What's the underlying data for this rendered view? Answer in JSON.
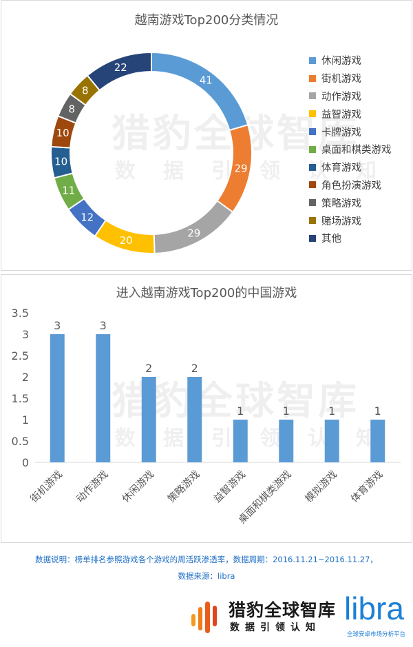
{
  "chart_data": [
    {
      "type": "pie",
      "variant": "donut",
      "title": "越南游戏Top200分类情况",
      "categories": [
        "休闲游戏",
        "街机游戏",
        "动作游戏",
        "益智游戏",
        "卡牌游戏",
        "桌面和棋类游戏",
        "体育游戏",
        "角色扮演游戏",
        "策略游戏",
        "赌场游戏",
        "其他"
      ],
      "values": [
        41,
        29,
        29,
        20,
        12,
        11,
        10,
        10,
        8,
        8,
        22
      ],
      "colors": [
        "#5b9bd5",
        "#ed7d31",
        "#a5a5a5",
        "#ffc000",
        "#4472c4",
        "#70ad47",
        "#255e91",
        "#9e480e",
        "#636363",
        "#997300",
        "#264478"
      ],
      "legend_position": "right"
    },
    {
      "type": "bar",
      "title": "进入越南游戏Top200的中国游戏",
      "categories": [
        "街机游戏",
        "动作游戏",
        "休闲游戏",
        "策略游戏",
        "益智游戏",
        "桌面和棋类游戏",
        "模拟游戏",
        "体育游戏"
      ],
      "values": [
        3,
        3,
        2,
        2,
        1,
        1,
        1,
        1
      ],
      "ylim": [
        0,
        3.5
      ],
      "yticks": [
        "0",
        "0.5",
        "1",
        "1.5",
        "2",
        "2.5",
        "3",
        "3.5"
      ],
      "bar_color": "#5b9bd5",
      "grid": false
    }
  ],
  "note": {
    "line1": "数据说明：榜单排名参照游戏各个游戏的周活跃渗透率，数据周期：2016.11.21~2016.11.27，",
    "line2": "数据来源：libra"
  },
  "watermark": {
    "main": "猎豹全球智库",
    "sub": "数据引领认知"
  },
  "brand": {
    "name": "猎豹全球智库",
    "slogan": "数据引领认知",
    "partner": "libra",
    "partner_tagline": "全球安卓市场分析平台"
  }
}
